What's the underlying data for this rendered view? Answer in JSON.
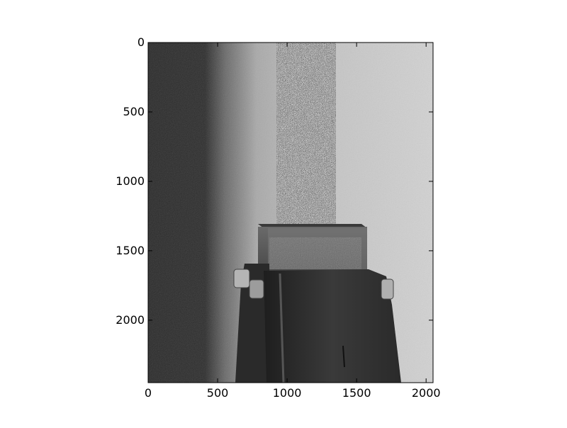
{
  "chart_data": {
    "type": "image",
    "xlim": [
      0,
      2050
    ],
    "ylim": [
      2450,
      0
    ],
    "x_ticks": [
      0,
      500,
      1000,
      1500,
      2000
    ],
    "y_ticks": [
      0,
      500,
      1000,
      1500,
      2000
    ],
    "x_tick_labels": [
      "0",
      "500",
      "1000",
      "1500",
      "2000"
    ],
    "y_tick_labels": [
      "0",
      "500",
      "1000",
      "1500",
      "2000"
    ],
    "grid": false,
    "colormap": "gray",
    "title": "",
    "xlabel": "",
    "ylabel": ""
  }
}
